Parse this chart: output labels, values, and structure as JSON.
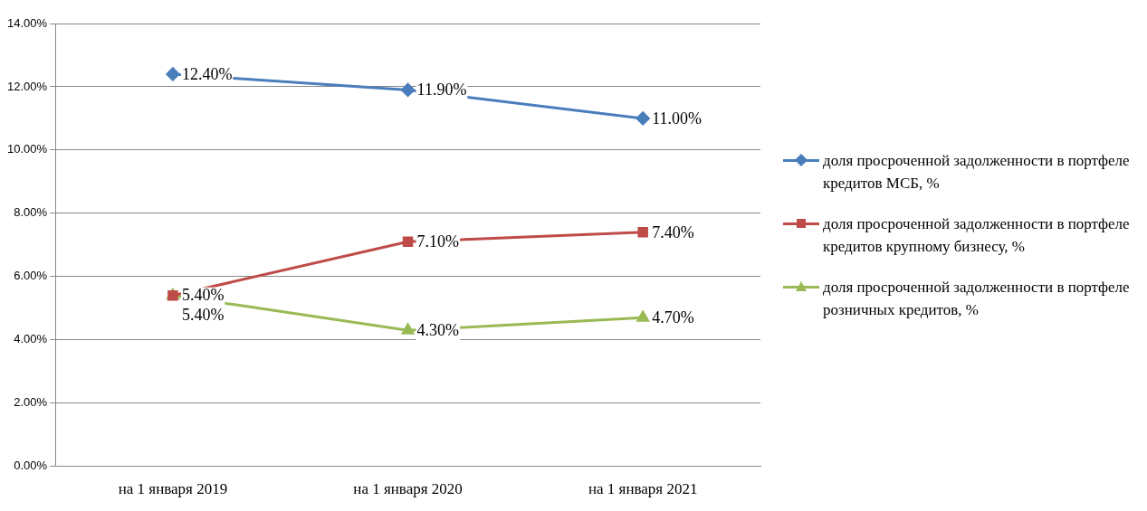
{
  "chart_data": {
    "type": "line",
    "categories": [
      "на 1 января 2019",
      "на 1 января 2020",
      "на 1 января 2021"
    ],
    "series": [
      {
        "name": "доля просроченной задолженности в портфеле кредитов МСБ, %",
        "color": "#4a7ebb",
        "marker": "diamond",
        "values": [
          12.4,
          11.9,
          11.0
        ],
        "value_labels": [
          "12.40%",
          "11.90%",
          "11.00%"
        ]
      },
      {
        "name": "доля просроченной задолженности в портфеле кредитов крупному бизнесу, %",
        "color": "#be4b48",
        "marker": "square",
        "values": [
          5.4,
          7.1,
          7.4
        ],
        "value_labels": [
          "5.40%",
          "7.10%",
          "7.40%"
        ]
      },
      {
        "name": "доля просроченной задолженности в портфеле розничных кредитов, %",
        "color": "#98b954",
        "marker": "triangle",
        "values": [
          5.4,
          4.3,
          4.7
        ],
        "value_labels": [
          "5.40%",
          "4.30%",
          "4.70%"
        ]
      }
    ],
    "ylim": [
      0,
      14
    ],
    "yticks": [
      {
        "value": 0,
        "label": "0.00%"
      },
      {
        "value": 2,
        "label": "2.00%"
      },
      {
        "value": 4,
        "label": "4.00%"
      },
      {
        "value": 6,
        "label": "6.00%"
      },
      {
        "value": 8,
        "label": "8.00%"
      },
      {
        "value": 10,
        "label": "10.00%"
      },
      {
        "value": 12,
        "label": "12.00%"
      },
      {
        "value": 14,
        "label": "14.00%"
      }
    ],
    "grid": "y",
    "legend": "right"
  }
}
